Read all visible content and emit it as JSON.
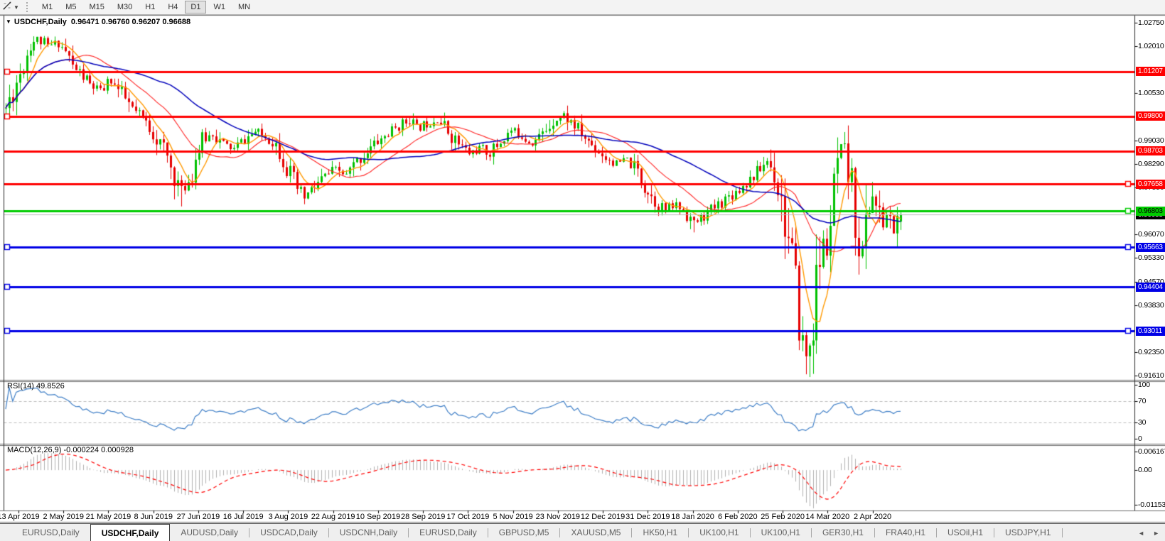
{
  "toolbar": {
    "cursor_tool": "crosshair-cursor",
    "timeframes": [
      "M1",
      "M5",
      "M15",
      "M30",
      "H1",
      "H4",
      "D1",
      "W1",
      "MN"
    ],
    "active_timeframe": "D1"
  },
  "icons": {
    "title_dropdown": "▼",
    "toolbar_caret": "▼",
    "scroll_left": "◄",
    "scroll_right": "►"
  },
  "chart": {
    "symbol_title": "USDCHF,Daily",
    "ohlc_text": "0.96471 0.96760 0.96207 0.96688"
  },
  "price_axis": {
    "ticks": [
      "1.02750",
      "1.02010",
      "1.00530",
      "0.99030",
      "0.98290",
      "0.97550",
      "0.96070",
      "0.95330",
      "0.94570",
      "0.93830",
      "0.92350",
      "0.91610"
    ],
    "current_price_label": {
      "text": "0.96688",
      "price": 0.96688,
      "bg": "#000000",
      "fg": "#ffffff"
    }
  },
  "hlines": [
    {
      "price": 1.01207,
      "label": "1.01207",
      "color": "#ff0000",
      "label_fg": "#ffffff",
      "width": 3,
      "left_marker": true,
      "right_marker": false
    },
    {
      "price": 0.998,
      "label": "0.99800",
      "color": "#ff0000",
      "label_fg": "#ffffff",
      "width": 3,
      "left_marker": true,
      "right_marker": false
    },
    {
      "price": 0.98703,
      "label": "0.98703",
      "color": "#ff0000",
      "label_fg": "#ffffff",
      "width": 3,
      "left_marker": false,
      "right_marker": false
    },
    {
      "price": 0.97658,
      "label": "0.97658",
      "color": "#ff0000",
      "label_fg": "#ffffff",
      "width": 3,
      "left_marker": false,
      "right_marker": true
    },
    {
      "price": 0.96803,
      "label": "0.96803",
      "color": "#00cc00",
      "label_fg": "#000000",
      "width": 3,
      "left_marker": false,
      "right_marker": true
    },
    {
      "price": 0.95663,
      "label": "0.95663",
      "color": "#0000e6",
      "label_fg": "#ffffff",
      "width": 3,
      "left_marker": true,
      "right_marker": true
    },
    {
      "price": 0.94404,
      "label": "0.94404",
      "color": "#0000e6",
      "label_fg": "#ffffff",
      "width": 3,
      "left_marker": true,
      "right_marker": false
    },
    {
      "price": 0.93011,
      "label": "0.93011",
      "color": "#0000e6",
      "label_fg": "#ffffff",
      "width": 3,
      "left_marker": true,
      "right_marker": true
    }
  ],
  "current_price_line": {
    "price": 0.96688,
    "color": "#b8b8b8"
  },
  "date_axis": {
    "labels": [
      "13 Apr 2019",
      "2 May 2019",
      "21 May 2019",
      "8 Jun 2019",
      "27 Jun 2019",
      "16 Jul 2019",
      "3 Aug 2019",
      "22 Aug 2019",
      "10 Sep 2019",
      "28 Sep 2019",
      "17 Oct 2019",
      "5 Nov 2019",
      "23 Nov 2019",
      "12 Dec 2019",
      "31 Dec 2019",
      "18 Jan 2020",
      "6 Feb 2020",
      "25 Feb 2020",
      "14 Mar 2020",
      "2 Apr 2020"
    ]
  },
  "rsi_panel": {
    "label": "RSI(14)",
    "value": "49.8526",
    "levels": [
      {
        "text": "100",
        "value": 100
      },
      {
        "text": "70",
        "value": 70
      },
      {
        "text": "30",
        "value": 30
      },
      {
        "text": "0",
        "value": 0
      }
    ],
    "line_color": "#3e7ec6",
    "level_line_color": "#bdbdbd"
  },
  "macd_panel": {
    "label": "MACD(12,26,9)",
    "values": "-0.000224 0.000928",
    "scale": [
      {
        "text": "0.006167",
        "value": 0.006167
      },
      {
        "text": "0.00",
        "value": 0
      },
      {
        "text": "-0.011531",
        "value": -0.011531
      }
    ],
    "histogram_color": "#b0b0b0",
    "signal_color": "#ff0000"
  },
  "tabs": {
    "items": [
      {
        "label": "EURUSD,Daily",
        "active": false
      },
      {
        "label": "USDCHF,Daily",
        "active": true
      },
      {
        "label": "AUDUSD,Daily",
        "active": false
      },
      {
        "label": "USDCAD,Daily",
        "active": false
      },
      {
        "label": "USDCNH,Daily",
        "active": false
      },
      {
        "label": "EURUSD,Daily",
        "active": false
      },
      {
        "label": "GBPUSD,M5",
        "active": false
      },
      {
        "label": "XAUUSD,M5",
        "active": false
      },
      {
        "label": "HK50,H1",
        "active": false
      },
      {
        "label": "UK100,H1",
        "active": false
      },
      {
        "label": "UK100,H1",
        "active": false
      },
      {
        "label": "GER30,H1",
        "active": false
      },
      {
        "label": "FRA40,H1",
        "active": false
      },
      {
        "label": "USOil,H1",
        "active": false
      },
      {
        "label": "USDJPY,H1",
        "active": false
      }
    ]
  },
  "chart_data": {
    "type": "candlestick",
    "symbol": "USDCHF",
    "timeframe": "Daily",
    "visible_range": {
      "first_label": "13 Apr 2019",
      "last_label": "2 Apr 2020",
      "price_min": 0.9161,
      "price_max": 1.0275
    },
    "last_candle": {
      "open": 0.96471,
      "high": 0.9676,
      "low": 0.96207,
      "close": 0.96688
    },
    "candle_count": 256,
    "bull_color": "#00c000",
    "bear_color": "#e60000",
    "seed": 11,
    "moving_averages": [
      {
        "period": 7,
        "color": "#ff9900",
        "width": 1.4
      },
      {
        "period": 20,
        "color": "#ff2020",
        "width": 1.1
      },
      {
        "period": 45,
        "color": "#0000bb",
        "width": 1.5
      }
    ],
    "indicators": {
      "rsi_period": 14,
      "macd_fast": 12,
      "macd_slow": 26,
      "macd_signal": 9
    },
    "price_path_anchors": [
      [
        0,
        1.0005
      ],
      [
        2,
        1.006
      ],
      [
        5,
        1.015
      ],
      [
        7,
        1.021
      ],
      [
        9,
        1.0225
      ],
      [
        12,
        1.02
      ],
      [
        15,
        1.0212
      ],
      [
        17,
        1.0185
      ],
      [
        19,
        1.0135
      ],
      [
        21,
        1.0118
      ],
      [
        24,
        1.0078
      ],
      [
        27,
        1.0058
      ],
      [
        30,
        1.0092
      ],
      [
        33,
        1.0048
      ],
      [
        36,
        1.0
      ],
      [
        39,
        0.9972
      ],
      [
        42,
        0.993
      ],
      [
        45,
        0.9872
      ],
      [
        48,
        0.9792
      ],
      [
        50,
        0.9748
      ],
      [
        52,
        0.9778
      ],
      [
        54,
        0.985
      ],
      [
        56,
        0.9902
      ],
      [
        59,
        0.9925
      ],
      [
        62,
        0.989
      ],
      [
        65,
        0.9876
      ],
      [
        68,
        0.9906
      ],
      [
        71,
        0.993
      ],
      [
        74,
        0.9914
      ],
      [
        77,
        0.9892
      ],
      [
        79,
        0.9852
      ],
      [
        81,
        0.9792
      ],
      [
        83,
        0.9748
      ],
      [
        85,
        0.9722
      ],
      [
        88,
        0.9756
      ],
      [
        91,
        0.979
      ],
      [
        94,
        0.9812
      ],
      [
        97,
        0.9792
      ],
      [
        100,
        0.9836
      ],
      [
        103,
        0.987
      ],
      [
        106,
        0.99
      ],
      [
        109,
        0.9924
      ],
      [
        112,
        0.995
      ],
      [
        115,
        0.9968
      ],
      [
        117,
        0.9942
      ],
      [
        120,
        0.9958
      ],
      [
        123,
        0.9974
      ],
      [
        126,
        0.9932
      ],
      [
        129,
        0.9892
      ],
      [
        132,
        0.9862
      ],
      [
        135,
        0.988
      ],
      [
        138,
        0.9862
      ],
      [
        141,
        0.99
      ],
      [
        144,
        0.9934
      ],
      [
        147,
        0.992
      ],
      [
        150,
        0.9896
      ],
      [
        153,
        0.9924
      ],
      [
        156,
        0.9968
      ],
      [
        159,
        0.9984
      ],
      [
        162,
        0.995
      ],
      [
        165,
        0.991
      ],
      [
        168,
        0.988
      ],
      [
        171,
        0.985
      ],
      [
        174,
        0.983
      ],
      [
        177,
        0.9842
      ],
      [
        180,
        0.9806
      ],
      [
        182,
        0.9762
      ],
      [
        185,
        0.9712
      ],
      [
        188,
        0.9682
      ],
      [
        191,
        0.9702
      ],
      [
        194,
        0.9672
      ],
      [
        196,
        0.9642
      ],
      [
        199,
        0.9666
      ],
      [
        202,
        0.9692
      ],
      [
        205,
        0.972
      ],
      [
        208,
        0.9742
      ],
      [
        211,
        0.9772
      ],
      [
        214,
        0.9802
      ],
      [
        217,
        0.984
      ],
      [
        219,
        0.98
      ],
      [
        221,
        0.972
      ],
      [
        222,
        0.965
      ],
      [
        223,
        0.958
      ],
      [
        224,
        0.952
      ],
      [
        225,
        0.943
      ],
      [
        226,
        0.934
      ],
      [
        227,
        0.926
      ],
      [
        228,
        0.922
      ],
      [
        229,
        0.927
      ],
      [
        230,
        0.933
      ],
      [
        231,
        0.945
      ],
      [
        232,
        0.953
      ],
      [
        233,
        0.958
      ],
      [
        234,
        0.956
      ],
      [
        235,
        0.964
      ],
      [
        236,
        0.973
      ],
      [
        237,
        0.982
      ],
      [
        238,
        0.987
      ],
      [
        239,
        0.9845
      ],
      [
        240,
        0.98
      ],
      [
        241,
        0.974
      ],
      [
        242,
        0.9665
      ],
      [
        243,
        0.959
      ],
      [
        244,
        0.955
      ],
      [
        245,
        0.964
      ],
      [
        246,
        0.97
      ],
      [
        247,
        0.973
      ],
      [
        248,
        0.9695
      ],
      [
        249,
        0.966
      ],
      [
        250,
        0.9635
      ],
      [
        251,
        0.967
      ],
      [
        252,
        0.9645
      ],
      [
        253,
        0.9615
      ],
      [
        254,
        0.965
      ],
      [
        255,
        0.96688
      ]
    ],
    "overrides": {
      "9": {
        "h": 1.0228
      },
      "50": {
        "l": 0.9695
      },
      "85": {
        "l": 0.9702
      },
      "115": {
        "h": 0.9979
      },
      "159": {
        "h": 0.9996
      },
      "196": {
        "l": 0.9613
      },
      "217": {
        "h": 0.9848
      },
      "228": {
        "l": 0.9165
      },
      "238": {
        "h": 0.989
      },
      "247": {
        "h": 0.9772
      },
      "255": {
        "o": 0.96471,
        "h": 0.9676,
        "l": 0.96207,
        "c": 0.96688
      }
    }
  }
}
